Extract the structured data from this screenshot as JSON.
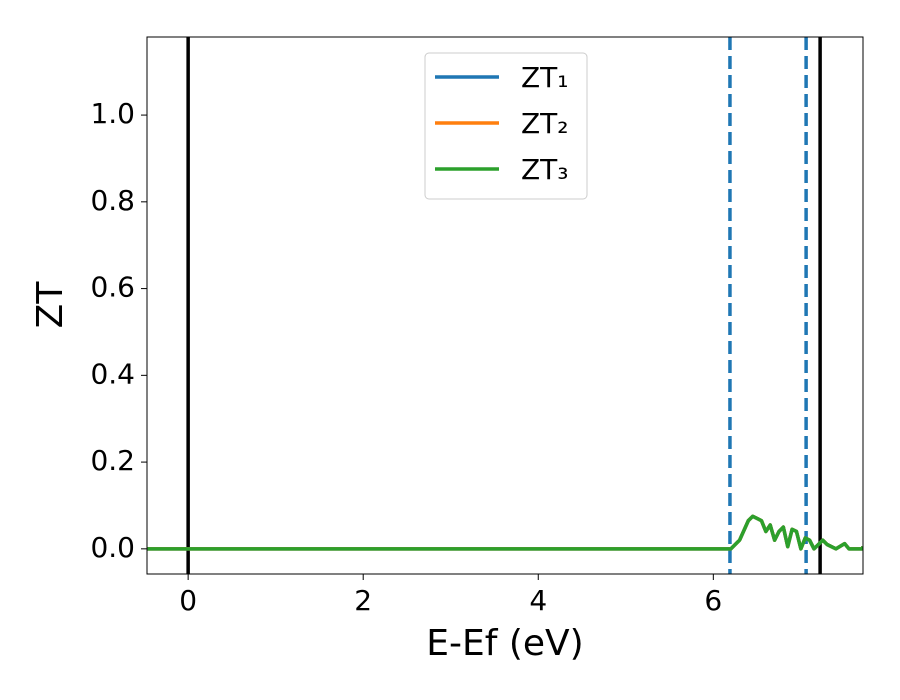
{
  "chart_data": {
    "type": "line",
    "x_label": "E-Ef (eV)",
    "y_label": "ZT",
    "x": [
      -0.47,
      6.2,
      6.3,
      6.4,
      6.45,
      6.5,
      6.55,
      6.6,
      6.65,
      6.7,
      6.75,
      6.8,
      6.85,
      6.9,
      6.95,
      7.0,
      7.05,
      7.1,
      7.15,
      7.25,
      7.3,
      7.4,
      7.5,
      7.55,
      7.7,
      7.71
    ],
    "series": [
      {
        "name": "ZT₁",
        "color": "#1f77b4",
        "values": [
          0,
          0,
          0.02,
          0.065,
          0.075,
          0.07,
          0.065,
          0.04,
          0.055,
          0.02,
          0.04,
          0.05,
          0.005,
          0.045,
          0.04,
          0,
          0.025,
          0.02,
          0,
          0.02,
          0.01,
          0,
          0.012,
          0,
          0,
          0.005
        ]
      },
      {
        "name": "ZT₂",
        "color": "#ff7f0e",
        "values": [
          0,
          0,
          0.02,
          0.065,
          0.075,
          0.07,
          0.065,
          0.04,
          0.055,
          0.02,
          0.04,
          0.05,
          0.005,
          0.045,
          0.04,
          0,
          0.025,
          0.02,
          0,
          0.02,
          0.01,
          0,
          0.012,
          0,
          0,
          0.005
        ]
      },
      {
        "name": "ZT₃",
        "color": "#2ca02c",
        "values": [
          0,
          0,
          0.02,
          0.065,
          0.075,
          0.07,
          0.065,
          0.04,
          0.055,
          0.02,
          0.04,
          0.05,
          0.005,
          0.045,
          0.04,
          0,
          0.025,
          0.02,
          0,
          0.02,
          0.01,
          0,
          0.012,
          0,
          0,
          0.005
        ]
      }
    ],
    "vlines": [
      {
        "x": 0,
        "color": "#000000",
        "style": "solid"
      },
      {
        "x": 7.22,
        "color": "#000000",
        "style": "solid"
      },
      {
        "x": 6.19,
        "color": "#1f77b4",
        "style": "dashed"
      },
      {
        "x": 7.06,
        "color": "#1f77b4",
        "style": "dashed"
      }
    ],
    "xlim": [
      -0.47,
      7.71
    ],
    "ylim": [
      -0.058,
      1.18
    ],
    "xticks": [
      0,
      2,
      4,
      6
    ],
    "yticks": [
      {
        "value": 0,
        "label": "0.0"
      },
      {
        "value": 0.2,
        "label": "0.2"
      },
      {
        "value": 0.4,
        "label": "0.4"
      },
      {
        "value": 0.6,
        "label": "0.6"
      },
      {
        "value": 0.8,
        "label": "0.8"
      },
      {
        "value": 1.0,
        "label": "1.0"
      }
    ],
    "grid": false,
    "legend": "upper center"
  }
}
